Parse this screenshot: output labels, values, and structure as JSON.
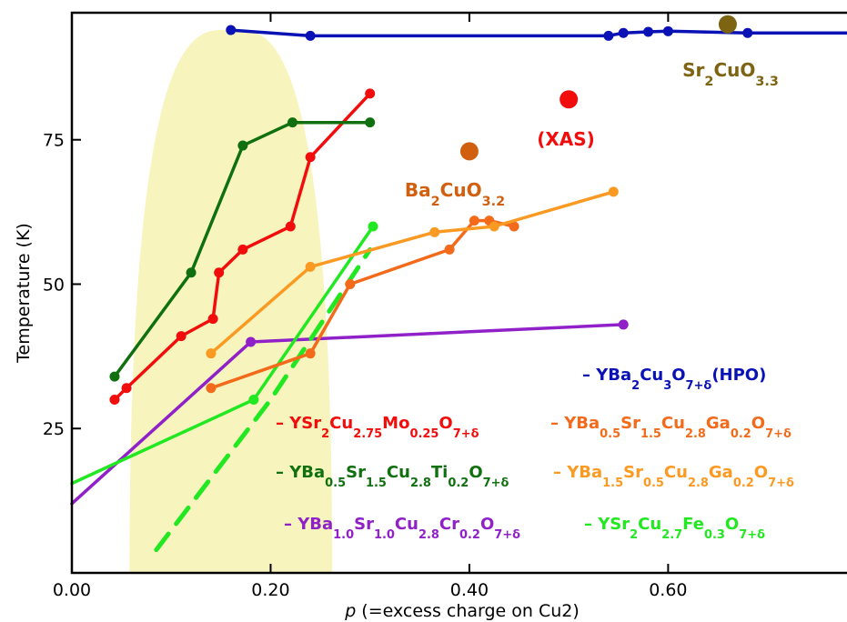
{
  "chart_data": {
    "type": "line",
    "title": "",
    "xlabel": "p (=excess charge on Cu2)",
    "xlabel_italic": "p",
    "xlabel_rest": " (=excess charge on Cu2)",
    "ylabel": "Temperature (K)",
    "xlim": [
      0.0,
      0.78
    ],
    "ylim": [
      0,
      97
    ],
    "xticks": [
      0.0,
      0.2,
      0.4,
      0.6
    ],
    "xtick_labels": [
      "0.00",
      "0.20",
      "0.40",
      "0.60"
    ],
    "yticks": [
      25,
      50,
      75
    ],
    "ytick_labels": [
      "25",
      "50",
      "75"
    ],
    "grid": false,
    "shaded_region": {
      "x_left": 0.058,
      "x_peak": 0.16,
      "x_right": 0.262,
      "y_peak": 94,
      "color": "#f7f5bd"
    },
    "series": [
      {
        "key": "hpo",
        "color": "#0a12b5",
        "x": [
          0.16,
          0.24,
          0.54,
          0.555,
          0.58,
          0.6,
          0.68,
          0.78
        ],
        "y": [
          94,
          93,
          93,
          93.5,
          93.7,
          93.8,
          93.5,
          93.5
        ],
        "markers": [
          true,
          true,
          true,
          true,
          true,
          true,
          true,
          false
        ]
      },
      {
        "key": "mo",
        "color": "#f20d0d",
        "x": [
          0.043,
          0.055,
          0.11,
          0.142,
          0.148,
          0.172,
          0.22,
          0.24,
          0.3
        ],
        "y": [
          30,
          32,
          41,
          44,
          52,
          56,
          60,
          72,
          83
        ]
      },
      {
        "key": "ti",
        "color": "#107010",
        "x": [
          0.043,
          0.12,
          0.172,
          0.222,
          0.3
        ],
        "y": [
          34,
          52,
          74,
          78,
          78
        ]
      },
      {
        "key": "cr",
        "color": "#9020c8",
        "x": [
          0.0,
          0.18,
          0.555
        ],
        "y": [
          12,
          40,
          43
        ],
        "markers": [
          false,
          true,
          true
        ]
      },
      {
        "key": "fe",
        "color": "#22e822",
        "x": [
          0.0,
          0.183,
          0.303
        ],
        "y": [
          15.5,
          30,
          60
        ],
        "markers": [
          false,
          true,
          true
        ]
      },
      {
        "key": "fe_dashed",
        "color": "#22e822",
        "dashed": true,
        "x": [
          0.085,
          0.2,
          0.3
        ],
        "y": [
          4,
          30,
          56
        ],
        "markers": [
          false,
          false,
          false
        ]
      },
      {
        "key": "ga_a",
        "color": "#f26a1a",
        "x": [
          0.14,
          0.24,
          0.28,
          0.38,
          0.405,
          0.42,
          0.445
        ],
        "y": [
          32,
          38,
          50,
          56,
          61,
          61,
          60
        ]
      },
      {
        "key": "ga_b",
        "color": "#fb9a22",
        "x": [
          0.14,
          0.24,
          0.365,
          0.425,
          0.545
        ],
        "y": [
          38,
          53,
          59,
          60,
          66
        ]
      }
    ],
    "points": [
      {
        "key": "sr2cuo",
        "color": "#7c6412",
        "x": 0.66,
        "y": 95
      },
      {
        "key": "xas",
        "color": "#f20d0d",
        "x": 0.5,
        "y": 82
      },
      {
        "key": "ba2cuo",
        "color": "#d0600f",
        "x": 0.4,
        "y": 73
      }
    ],
    "annotations": {
      "sr2cuo": {
        "color": "#7c6412",
        "parts": [
          [
            "Sr",
            ""
          ],
          [
            "2",
            "sub"
          ],
          [
            "CuO",
            ""
          ],
          [
            "3.3",
            "sub"
          ]
        ]
      },
      "xas": {
        "color": "#f20d0d",
        "parts": [
          [
            "(XAS)",
            ""
          ]
        ]
      },
      "ba2cuo": {
        "color": "#d0600f",
        "parts": [
          [
            "Ba",
            ""
          ],
          [
            "2",
            "sub"
          ],
          [
            "CuO",
            ""
          ],
          [
            "3.2",
            "sub"
          ]
        ]
      }
    },
    "legend": [
      {
        "key": "hpo",
        "color": "#0a12b5",
        "parts": [
          [
            "– YBa",
            ""
          ],
          [
            "2",
            "sub"
          ],
          [
            "Cu",
            ""
          ],
          [
            "3",
            "sub"
          ],
          [
            "O",
            ""
          ],
          [
            "7+δ",
            "sub"
          ],
          [
            "(HPO)",
            ""
          ]
        ]
      },
      {
        "key": "mo",
        "color": "#f20d0d",
        "parts": [
          [
            "– YSr",
            ""
          ],
          [
            "2",
            "sub"
          ],
          [
            "Cu",
            ""
          ],
          [
            "2.75",
            "sub"
          ],
          [
            "Mo",
            ""
          ],
          [
            "0.25",
            "sub"
          ],
          [
            "O",
            ""
          ],
          [
            "7+δ",
            "sub"
          ]
        ]
      },
      {
        "key": "ga_a",
        "color": "#f26a1a",
        "parts": [
          [
            "– YBa",
            ""
          ],
          [
            "0.5",
            "sub"
          ],
          [
            "Sr",
            ""
          ],
          [
            "1.5",
            "sub"
          ],
          [
            "Cu",
            ""
          ],
          [
            "2.8",
            "sub"
          ],
          [
            "Ga",
            ""
          ],
          [
            "0.2",
            "sub"
          ],
          [
            "O",
            ""
          ],
          [
            "7+δ",
            "sub"
          ]
        ]
      },
      {
        "key": "ti",
        "color": "#107010",
        "parts": [
          [
            "– YBa",
            ""
          ],
          [
            "0.5",
            "sub"
          ],
          [
            "Sr",
            ""
          ],
          [
            "1.5",
            "sub"
          ],
          [
            "Cu",
            ""
          ],
          [
            "2.8",
            "sub"
          ],
          [
            "Ti",
            ""
          ],
          [
            "0.2",
            "sub"
          ],
          [
            "O",
            ""
          ],
          [
            "7+δ",
            "sub"
          ]
        ]
      },
      {
        "key": "ga_b",
        "color": "#fb9a22",
        "parts": [
          [
            "– YBa",
            ""
          ],
          [
            "1.5",
            "sub"
          ],
          [
            "Sr",
            ""
          ],
          [
            "0.5",
            "sub"
          ],
          [
            "Cu",
            ""
          ],
          [
            "2.8",
            "sub"
          ],
          [
            "Ga",
            ""
          ],
          [
            "0.2",
            "sub"
          ],
          [
            "O",
            ""
          ],
          [
            "7+δ",
            "sub"
          ]
        ]
      },
      {
        "key": "cr",
        "color": "#9020c8",
        "parts": [
          [
            "– YBa",
            ""
          ],
          [
            "1.0",
            "sub"
          ],
          [
            "Sr",
            ""
          ],
          [
            "1.0",
            "sub"
          ],
          [
            "Cu",
            ""
          ],
          [
            "2.8",
            "sub"
          ],
          [
            "Cr",
            ""
          ],
          [
            "0.2",
            "sub"
          ],
          [
            "O",
            ""
          ],
          [
            "7+δ",
            "sub"
          ]
        ]
      },
      {
        "key": "fe",
        "color": "#22e822",
        "parts": [
          [
            "– YSr",
            ""
          ],
          [
            "2",
            "sub"
          ],
          [
            "Cu",
            ""
          ],
          [
            "2.7",
            "sub"
          ],
          [
            "Fe",
            ""
          ],
          [
            "0.3",
            "sub"
          ],
          [
            "O",
            ""
          ],
          [
            "7+δ",
            "sub"
          ]
        ]
      }
    ]
  }
}
